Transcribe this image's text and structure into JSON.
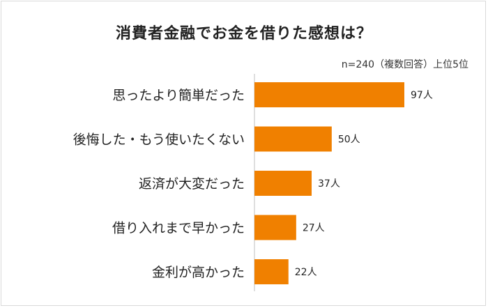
{
  "chart_data": {
    "type": "bar",
    "orientation": "horizontal",
    "title": "消費者金融でお金を借りた感想は？",
    "note": "n=240（複数回答）上位5位",
    "unit": "人",
    "categories": [
      "思ったより簡単だった",
      "後悔した・もう使いたくない",
      "返済が大変だった",
      "借り入れまで早かった",
      "金利が高かった"
    ],
    "values": [
      97,
      50,
      37,
      27,
      22
    ],
    "value_labels": [
      "97人",
      "50人",
      "37人",
      "27人",
      "22人"
    ],
    "bar_color": "#f08000",
    "xlim": [
      0,
      97
    ],
    "grid": false,
    "legend": "none"
  }
}
